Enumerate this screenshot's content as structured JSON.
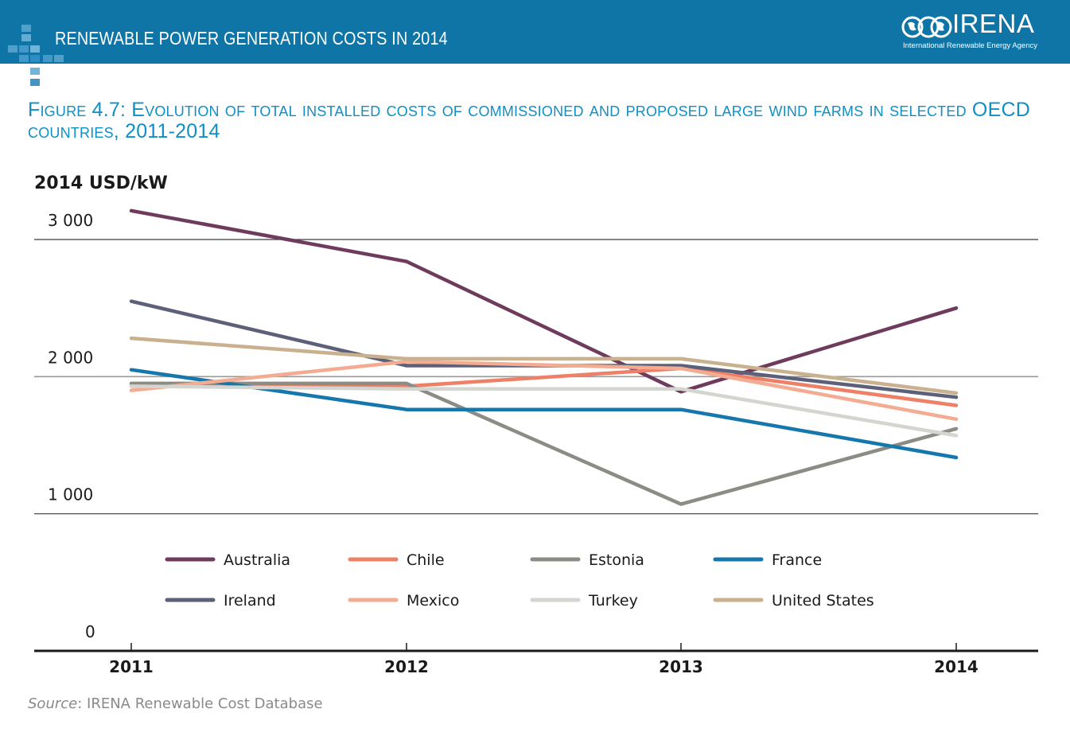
{
  "header": {
    "banner_title": "RENEWABLE POWER GENERATION COSTS IN 2014",
    "logo_word": "IRENA",
    "logo_subtitle": "International Renewable Energy Agency",
    "banner_color": "#0f74a6"
  },
  "figure": {
    "title": "Figure 4.7: Evolution of total installed costs of commissioned and proposed large wind farms in selected OECD countries, 2011-2014",
    "unit_label": "2014 USD/kW",
    "source_label": "Source",
    "source_text": ": IRENA Renewable Cost Database"
  },
  "chart_data": {
    "type": "line",
    "title": "Figure 4.7: Evolution of total installed costs of commissioned and proposed large wind farms in selected OECD countries, 2011-2014",
    "ylabel": "2014 USD/kW",
    "xlabel": "",
    "x": [
      "2011",
      "2012",
      "2013",
      "2014"
    ],
    "ylim": [
      0,
      3000
    ],
    "yticks": [
      0,
      1000,
      2000,
      3000
    ],
    "ytick_labels": [
      "0",
      "1 000",
      "2 000",
      "3 000"
    ],
    "grid": true,
    "legend_position": "bottom, inside plot (2 rows × 4 columns)",
    "series": [
      {
        "name": "Australia",
        "color": "#6e3b5d",
        "values": [
          3210,
          2840,
          1890,
          2500
        ]
      },
      {
        "name": "Chile",
        "color": "#ee8068",
        "values": [
          1930,
          1930,
          2060,
          1790
        ]
      },
      {
        "name": "Estonia",
        "color": "#8c8c84",
        "values": [
          1950,
          1950,
          1070,
          1620
        ]
      },
      {
        "name": "France",
        "color": "#1677ad",
        "values": [
          2050,
          1760,
          1760,
          1410
        ]
      },
      {
        "name": "Ireland",
        "color": "#5c6079",
        "values": [
          2550,
          2080,
          2080,
          1850
        ]
      },
      {
        "name": "Mexico",
        "color": "#f3ab91",
        "values": [
          1900,
          2110,
          2060,
          1690
        ]
      },
      {
        "name": "Turkey",
        "color": "#d4d4d0",
        "values": [
          1930,
          1910,
          1910,
          1570
        ]
      },
      {
        "name": "United States",
        "color": "#c9b08f",
        "values": [
          2280,
          2130,
          2130,
          1880
        ]
      }
    ]
  }
}
